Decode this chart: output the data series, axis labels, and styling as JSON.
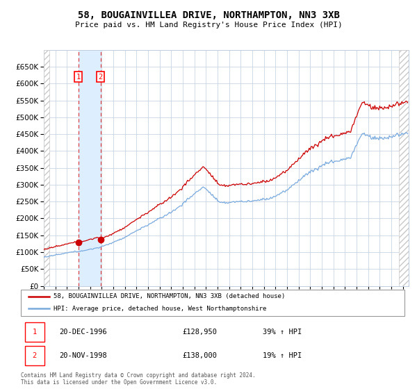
{
  "title1": "58, BOUGAINVILLEA DRIVE, NORTHAMPTON, NN3 3XB",
  "title2": "Price paid vs. HM Land Registry's House Price Index (HPI)",
  "legend_line1": "58, BOUGAINVILLEA DRIVE, NORTHAMPTON, NN3 3XB (detached house)",
  "legend_line2": "HPI: Average price, detached house, West Northamptonshire",
  "transaction1_date": "20-DEC-1996",
  "transaction1_price": "£128,950",
  "transaction1_hpi": "39% ↑ HPI",
  "transaction2_date": "20-NOV-1998",
  "transaction2_price": "£138,000",
  "transaction2_hpi": "19% ↑ HPI",
  "footer": "Contains HM Land Registry data © Crown copyright and database right 2024.\nThis data is licensed under the Open Government Licence v3.0.",
  "red_line_color": "#cc0000",
  "blue_line_color": "#7aaadd",
  "marker_color": "#cc0000",
  "vspan_color": "#ddeeff",
  "vline_color": "#dd4444",
  "grid_color": "#c0ccdd",
  "hatch_color": "#c8c8c8",
  "ylim": [
    0,
    700000
  ],
  "yticks": [
    0,
    50000,
    100000,
    150000,
    200000,
    250000,
    300000,
    350000,
    400000,
    450000,
    500000,
    550000,
    600000,
    650000
  ],
  "transaction1_x": 1996.97,
  "transaction1_y": 128950,
  "transaction2_x": 1998.89,
  "transaction2_y": 138000,
  "xmin": 1994.0,
  "xmax": 2025.5,
  "xticks": [
    1994,
    1995,
    1996,
    1997,
    1998,
    1999,
    2000,
    2001,
    2002,
    2003,
    2004,
    2005,
    2006,
    2007,
    2008,
    2009,
    2010,
    2011,
    2012,
    2013,
    2014,
    2015,
    2016,
    2017,
    2018,
    2019,
    2020,
    2021,
    2022,
    2023,
    2024,
    2025
  ]
}
